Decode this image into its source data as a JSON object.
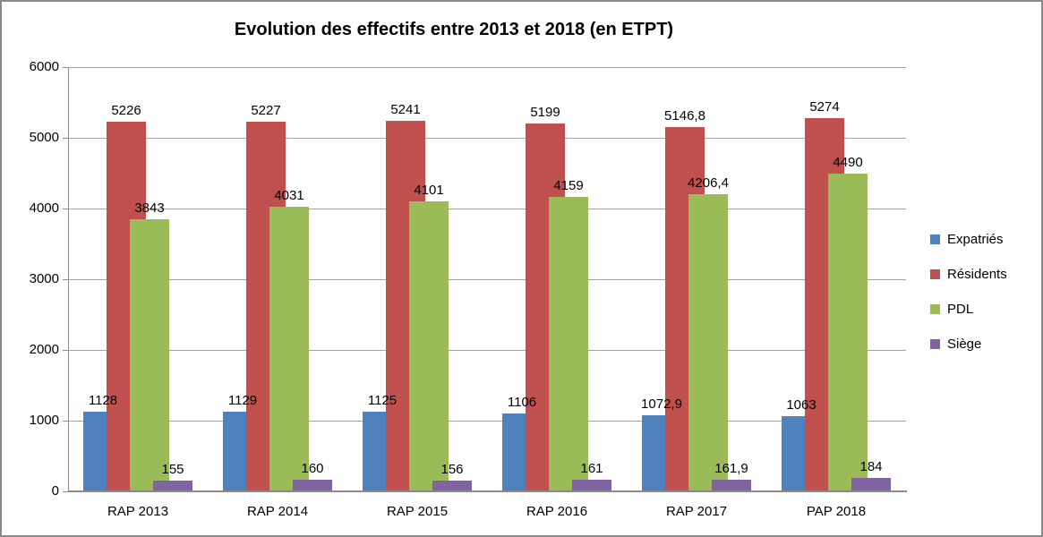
{
  "chart_data": {
    "type": "bar",
    "title": "Evolution des effectifs entre 2013 et 2018 (en ETPT)",
    "categories": [
      "RAP 2013",
      "RAP 2014",
      "RAP 2015",
      "RAP 2016",
      "RAP 2017",
      "PAP 2018"
    ],
    "series": [
      {
        "name": "Expatriés",
        "color": "#4F81BD",
        "values": [
          1128,
          1129,
          1125,
          1106,
          1072.9,
          1063
        ],
        "labels": [
          "1128",
          "1129",
          "1125",
          "1106",
          "1072,9",
          "1063"
        ]
      },
      {
        "name": "Résidents",
        "color": "#C0504D",
        "values": [
          5226,
          5227,
          5241,
          5199,
          5146.8,
          5274
        ],
        "labels": [
          "5226",
          "5227",
          "5241",
          "5199",
          "5146,8",
          "5274"
        ]
      },
      {
        "name": "PDL",
        "color": "#9BBB59",
        "values": [
          3843,
          4031,
          4101,
          4159,
          4206.4,
          4490
        ],
        "labels": [
          "3843",
          "4031",
          "4101",
          "4159",
          "4206,4",
          "4490"
        ]
      },
      {
        "name": "Siège",
        "color": "#8064A2",
        "values": [
          155,
          160,
          156,
          161,
          161.9,
          184
        ],
        "labels": [
          "155",
          "160",
          "156",
          "161",
          "161,9",
          "184"
        ]
      }
    ],
    "xlabel": "",
    "ylabel": "",
    "ylim": [
      0,
      6000
    ],
    "ytick_interval": 1000,
    "yticks": [
      "0",
      "1000",
      "2000",
      "3000",
      "4000",
      "5000",
      "6000"
    ],
    "grid": true,
    "legend_position": "right",
    "data_labels_shown": true
  },
  "colors": {
    "background": "#FFFFFF",
    "frame_border": "#898989",
    "gridline": "#A3A3A3",
    "axis": "#8A8A8A",
    "text": "#000000"
  }
}
